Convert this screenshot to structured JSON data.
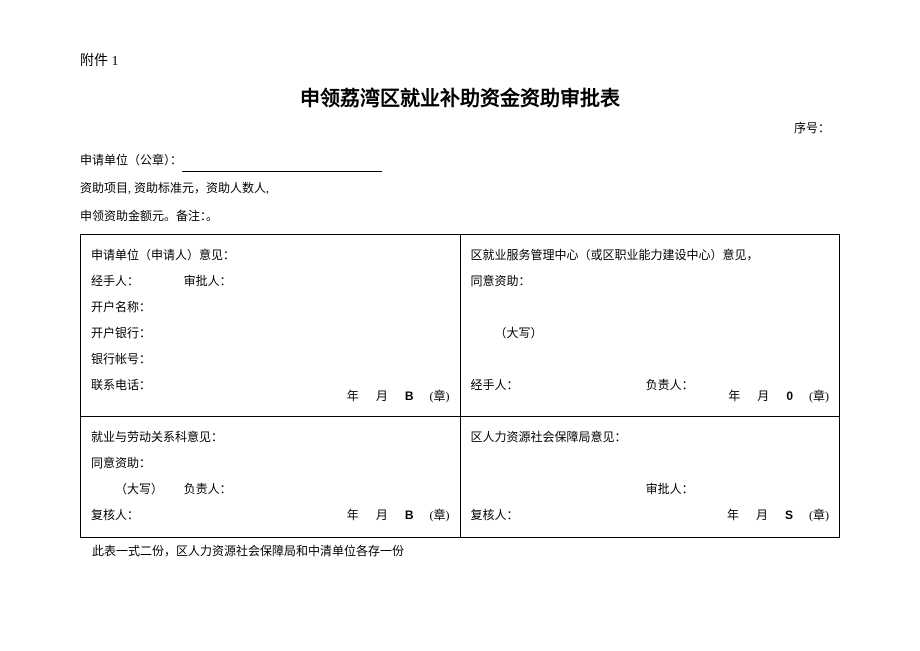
{
  "attachment": "附件 1",
  "title": "申领荔湾区就业补助资金资助审批表",
  "serial_label": "序号：",
  "header": {
    "applicant_unit": "申请单位（公章）：",
    "funding_items": "资助项目, 资助标准元，资助人数人,",
    "amount_note": "申领资助金额元。备注：。"
  },
  "cell_a": {
    "l1": "申请单位（申请人）意见：",
    "l2a": "经手人：",
    "l2b": "审批人：",
    "l3": "开户名称：",
    "l4": "开户银行：",
    "l5": "银行帐号：",
    "l6": "联系电话：",
    "stamp_y": "年",
    "stamp_m": "月",
    "stamp_code": "B",
    "stamp_zhang": "(章)"
  },
  "cell_b": {
    "l1": "区就业服务管理中心（或区职业能力建设中心）意见，",
    "l2": "同意资助：",
    "l3": "（大写）",
    "l4a": "经手人：",
    "l4b": "负责人：",
    "stamp_y": "年",
    "stamp_m": "月",
    "stamp_code": "0",
    "stamp_zhang": "(章)"
  },
  "cell_c": {
    "l1": "就业与劳动关系科意见：",
    "l2": "同意资助：",
    "l3a": "（大写）",
    "l3b": "负责人：",
    "l4": "复核人：",
    "stamp_y": "年",
    "stamp_m": "月",
    "stamp_code": "B",
    "stamp_zhang": "(章)"
  },
  "cell_d": {
    "l1": "区人力资源社会保障局意见：",
    "l2": "审批人：",
    "l3": "复核人：",
    "stamp_y": "年",
    "stamp_m": "月",
    "stamp_code": "S",
    "stamp_zhang": "(章)"
  },
  "footnote": "此表一式二份，区人力资源社会保障局和中清单位各存一份"
}
